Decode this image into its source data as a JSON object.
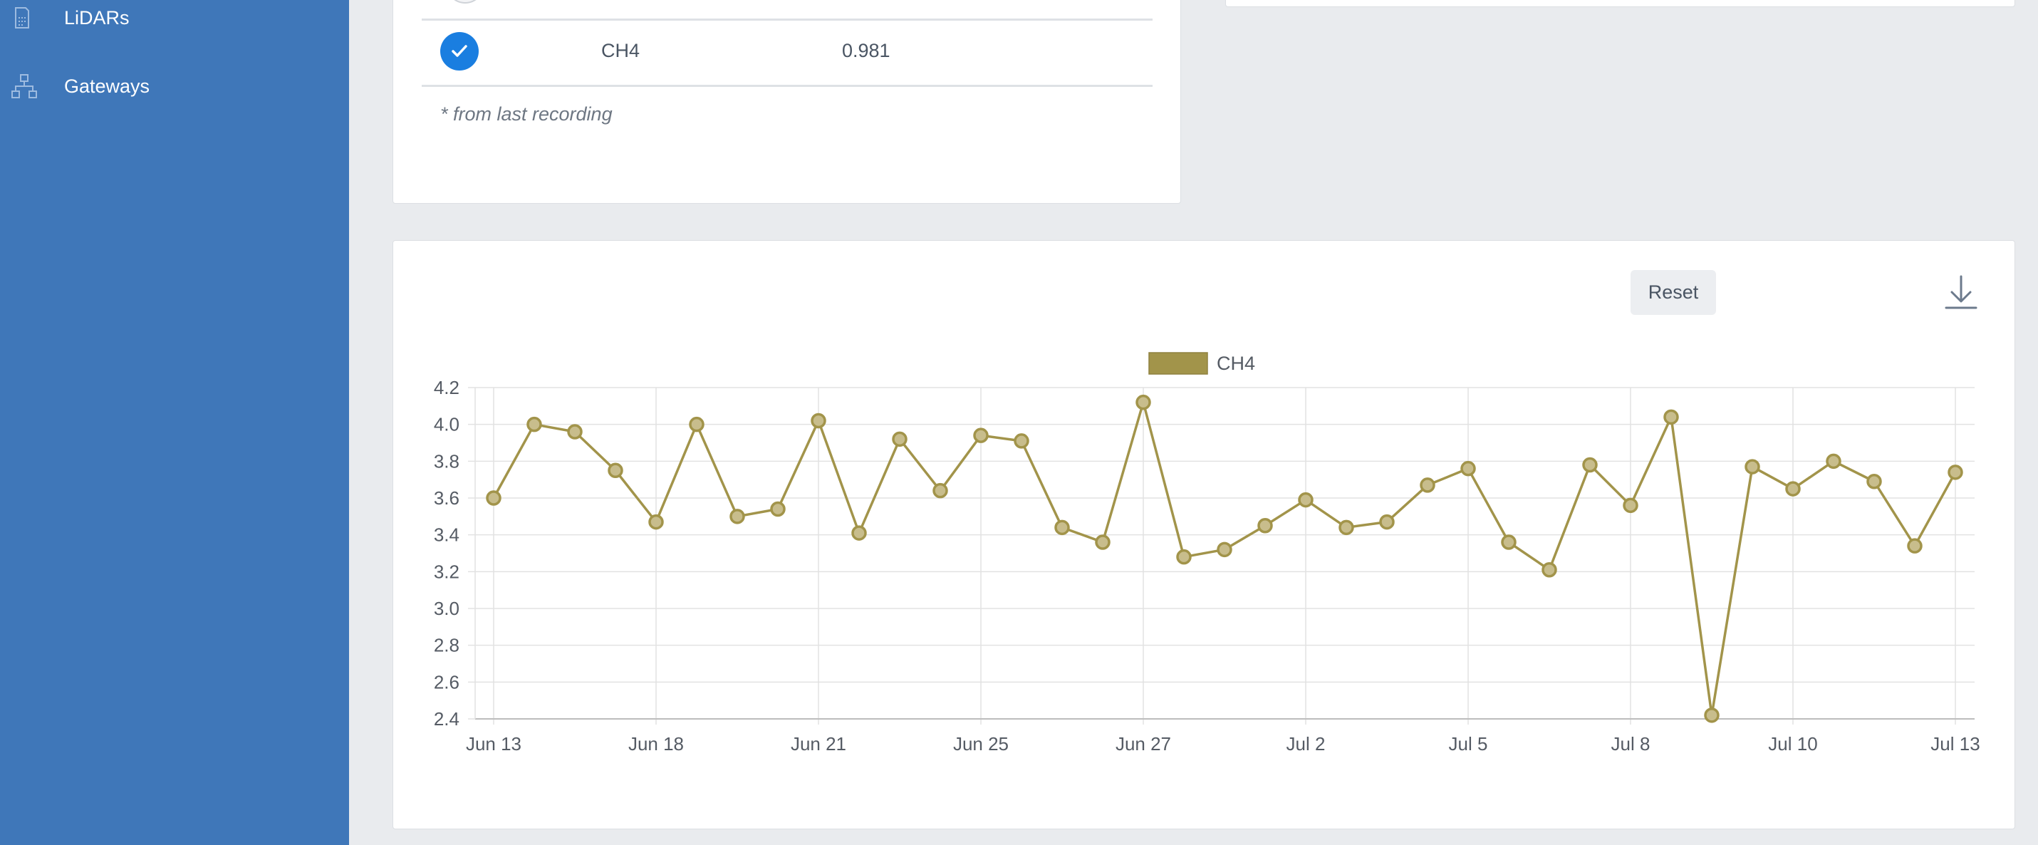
{
  "sidebar": {
    "items": [
      {
        "label": "LiDARs",
        "icon": "lidar-device-icon"
      },
      {
        "label": "Gateways",
        "icon": "network-hierarchy-icon"
      }
    ]
  },
  "readings_table": {
    "rows": [
      {
        "gas": "CH4",
        "value": "0.981",
        "selected": true
      }
    ],
    "footnote": "* from last recording"
  },
  "chart_toolbar": {
    "reset_label": "Reset",
    "download_icon": "download-icon"
  },
  "colors": {
    "sidebar_bg": "#3f77b9",
    "series_line": "#a2944a",
    "series_point_fill": "#c8bd8c",
    "checkbox_blue": "#1a7ee0"
  },
  "chart_data": {
    "type": "line",
    "title": "",
    "xlabel": "",
    "ylabel": "",
    "legend": "top-center",
    "grid": true,
    "ylim": [
      2.4,
      4.2
    ],
    "yticks": [
      "4.2",
      "4.0",
      "3.8",
      "3.6",
      "3.4",
      "3.2",
      "3.0",
      "2.8",
      "2.6",
      "2.4"
    ],
    "xticks": [
      "Jun 13",
      "Jun 18",
      "Jun 21",
      "Jun 25",
      "Jun 27",
      "Jul 2",
      "Jul 5",
      "Jul 8",
      "Jul 10",
      "Jul 13"
    ],
    "xtick_positions": [
      0,
      4,
      8,
      12,
      16,
      20,
      24,
      28,
      32,
      36
    ],
    "series": [
      {
        "name": "CH4",
        "values": [
          3.6,
          4.0,
          3.96,
          3.75,
          3.47,
          4.0,
          3.5,
          3.54,
          4.02,
          3.41,
          3.92,
          3.64,
          3.94,
          3.91,
          3.44,
          3.36,
          4.12,
          3.28,
          3.32,
          3.45,
          3.59,
          3.44,
          3.47,
          3.67,
          3.76,
          3.36,
          3.21,
          3.78,
          3.56,
          4.04,
          2.42,
          3.77,
          3.65,
          3.8,
          3.69,
          3.34,
          3.74
        ]
      }
    ]
  }
}
